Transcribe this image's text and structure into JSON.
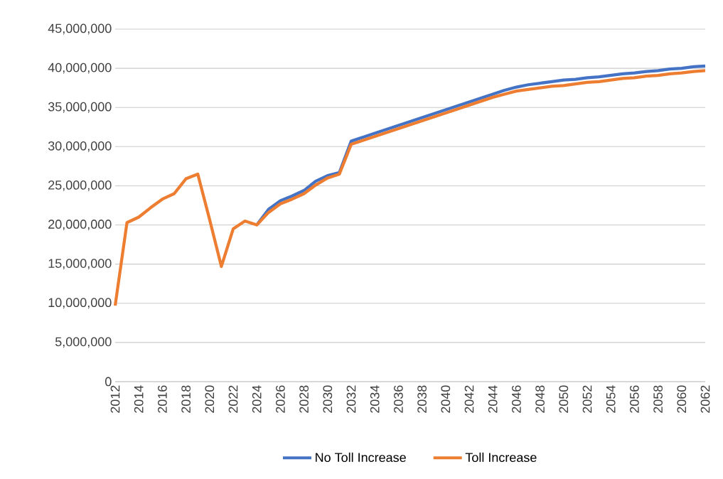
{
  "chart_data": {
    "type": "line",
    "x": [
      2012,
      2013,
      2014,
      2015,
      2016,
      2017,
      2018,
      2019,
      2020,
      2021,
      2022,
      2023,
      2024,
      2025,
      2026,
      2027,
      2028,
      2029,
      2030,
      2031,
      2032,
      2033,
      2034,
      2035,
      2036,
      2037,
      2038,
      2039,
      2040,
      2041,
      2042,
      2043,
      2044,
      2045,
      2046,
      2047,
      2048,
      2049,
      2050,
      2051,
      2052,
      2053,
      2054,
      2055,
      2056,
      2057,
      2058,
      2059,
      2060,
      2061,
      2062
    ],
    "series": [
      {
        "name": "No Toll Increase",
        "color": "#4472c4",
        "values": [
          null,
          null,
          null,
          null,
          null,
          null,
          null,
          null,
          null,
          null,
          null,
          null,
          20000000,
          22000000,
          23100000,
          23700000,
          24400000,
          25600000,
          26300000,
          26700000,
          30700000,
          31200000,
          31700000,
          32200000,
          32700000,
          33200000,
          33700000,
          34200000,
          34700000,
          35200000,
          35700000,
          36200000,
          36700000,
          37200000,
          37600000,
          37900000,
          38100000,
          38300000,
          38500000,
          38600000,
          38800000,
          38900000,
          39100000,
          39300000,
          39400000,
          39600000,
          39700000,
          39900000,
          40000000,
          40200000,
          40300000
        ]
      },
      {
        "name": "Toll Increase",
        "color": "#ed7d31",
        "values": [
          9700000,
          20300000,
          21000000,
          22200000,
          23300000,
          24000000,
          25900000,
          26500000,
          20700000,
          14700000,
          19500000,
          20500000,
          20000000,
          21600000,
          22700000,
          23300000,
          24000000,
          25100000,
          26000000,
          26500000,
          30300000,
          30800000,
          31300000,
          31800000,
          32300000,
          32800000,
          33300000,
          33800000,
          34300000,
          34800000,
          35300000,
          35800000,
          36300000,
          36700000,
          37100000,
          37300000,
          37500000,
          37700000,
          37800000,
          38000000,
          38200000,
          38300000,
          38500000,
          38700000,
          38800000,
          39000000,
          39100000,
          39300000,
          39400000,
          39600000,
          39700000
        ]
      }
    ],
    "xlim": [
      2012,
      2062
    ],
    "xticks": [
      2012,
      2014,
      2016,
      2018,
      2020,
      2022,
      2024,
      2026,
      2028,
      2030,
      2032,
      2034,
      2036,
      2038,
      2040,
      2042,
      2044,
      2046,
      2048,
      2050,
      2052,
      2054,
      2056,
      2058,
      2060,
      2062
    ],
    "ylim": [
      0,
      45000000
    ],
    "yticks": [
      0,
      {
        "value": 5000000,
        "label": "5,000,000"
      },
      {
        "value": 10000000,
        "label": "10,000,000"
      },
      {
        "value": 15000000,
        "label": "15,000,000"
      },
      {
        "value": 20000000,
        "label": "20,000,000"
      },
      {
        "value": 25000000,
        "label": "25,000,000"
      },
      {
        "value": 30000000,
        "label": "30,000,000"
      },
      {
        "value": 35000000,
        "label": "35,000,000"
      },
      {
        "value": 40000000,
        "label": "40,000,000"
      },
      {
        "value": 45000000,
        "label": "45,000,000"
      }
    ],
    "grid": "y",
    "legend": "bottom",
    "marker": "none",
    "line_style": "solid"
  }
}
